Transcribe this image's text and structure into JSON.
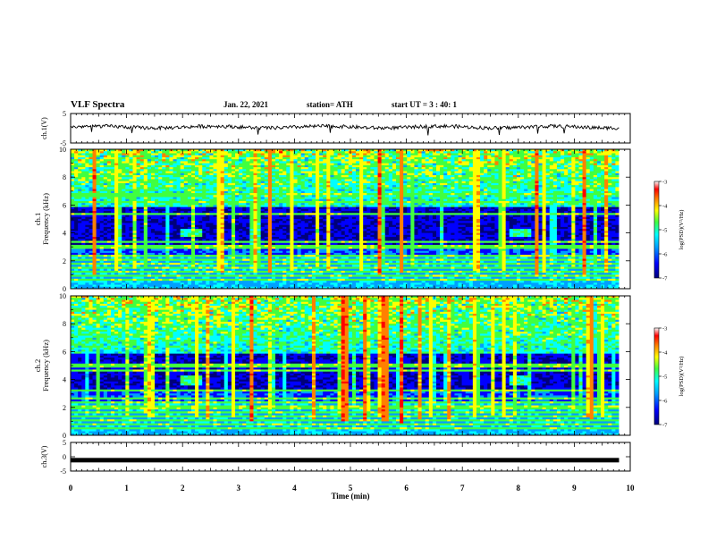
{
  "header": {
    "title": "VLF Spectra",
    "date": "Jan. 22, 2021",
    "station": "station= ATH",
    "start": "start UT = 3 : 40: 1"
  },
  "chart_data": [
    {
      "type": "line",
      "name": "ch1-waveform",
      "ylabel": "ch.1(V)",
      "ylim": [
        -5,
        5
      ],
      "yticks": [
        "5",
        "-5"
      ],
      "xlim": [
        0,
        10
      ],
      "trace_level": 0.4,
      "noise_amplitude": 0.6
    },
    {
      "type": "heatmap",
      "name": "ch1-spectrogram",
      "ylabel": "ch.1\nFrequency (kHz)",
      "ylabel_line1": "ch.1",
      "ylabel_line2": "Frequency (kHz)",
      "ylim": [
        0,
        10
      ],
      "yticks": [
        "0",
        "2",
        "4",
        "6",
        "8",
        "10"
      ],
      "xlim": [
        0,
        10
      ],
      "data_end_min": 9.8,
      "features": {
        "lines_khz": [
          0.6,
          0.9,
          1.2,
          1.5,
          1.8,
          2.1,
          2.3,
          3.0,
          3.4,
          5.4,
          6.2,
          6.8
        ],
        "blob": [
          {
            "t": 2.15,
            "f": 4.0
          },
          {
            "t": 8.05,
            "f": 4.0
          }
        ],
        "green_band_khz": [
          6.5,
          6.9
        ],
        "green_band_until_min": 2.4
      }
    },
    {
      "type": "heatmap",
      "name": "ch2-spectrogram",
      "ylabel": "ch.2\nFrequency (kHz)",
      "ylabel_line1": "ch.2",
      "ylabel_line2": "Frequency (kHz)",
      "ylim": [
        0,
        10
      ],
      "yticks": [
        "0",
        "2",
        "4",
        "6",
        "8",
        "10"
      ],
      "xlim": [
        0,
        10
      ],
      "data_end_min": 9.8,
      "features": {
        "lines_khz": [
          0.5,
          0.8,
          1.1,
          1.4,
          1.7,
          2.0,
          2.3,
          2.6,
          3.2,
          4.6,
          5.0
        ],
        "blob": [
          {
            "t": 2.15,
            "f": 3.9
          },
          {
            "t": 8.05,
            "f": 3.9
          }
        ]
      }
    },
    {
      "type": "line",
      "name": "ch3-waveform",
      "ylabel": "ch.3(V)",
      "ylim": [
        -5,
        5
      ],
      "yticks": [
        "5",
        "0",
        "-5"
      ],
      "xlim": [
        0,
        10
      ],
      "trace_level": -1.2,
      "noise_amplitude": 0.05
    }
  ],
  "x_axis": {
    "label": "Time (min)",
    "ticks": [
      "0",
      "1",
      "2",
      "3",
      "4",
      "5",
      "6",
      "7",
      "8",
      "9",
      "10"
    ]
  },
  "colorbars": [
    {
      "label": "log(PSD)(V²/Hz)",
      "ticks": [
        "-3",
        "-4",
        "-5",
        "-6",
        "-7"
      ],
      "range": [
        -7,
        -3
      ]
    },
    {
      "label": "log(PSD)(V²/Hz)",
      "ticks": [
        "-3",
        "-4",
        "-5",
        "-6",
        "-7"
      ],
      "range": [
        -7,
        -3
      ]
    }
  ],
  "colormap": [
    "#00007a",
    "#0000ff",
    "#00a0ff",
    "#00ffff",
    "#40ff40",
    "#ffff00",
    "#ff8000",
    "#ff0000",
    "#ffffff"
  ]
}
